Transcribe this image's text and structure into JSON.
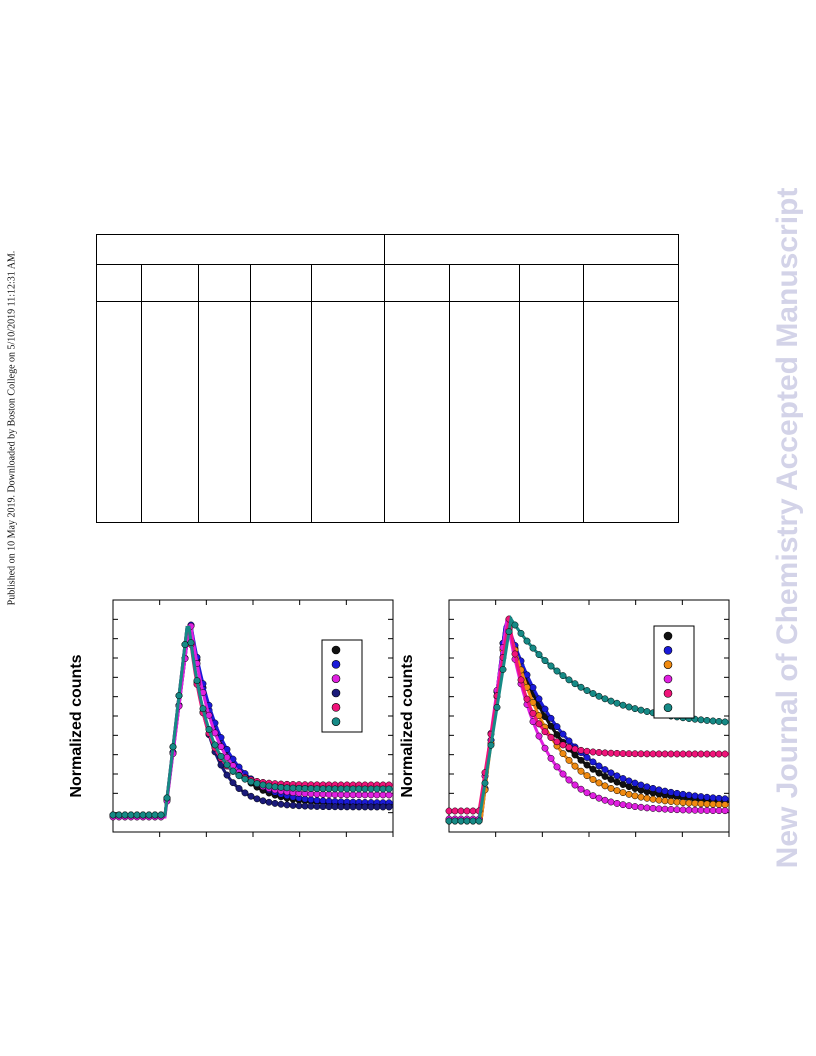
{
  "side_note": "Published on 10 May 2019. Downloaded by Boston College on 5/10/2019 11:12:31 AM.",
  "watermark": "New Journal of Chemistry Accepted Manuscript",
  "colors": {
    "black": "#111111",
    "blue": "#1a1ad8",
    "magenta": "#e020e0",
    "navy": "#1a1a7a",
    "pink": "#f0147a",
    "teal": "#168a86",
    "orange": "#f08a10",
    "watermark": "#d3d3e8"
  },
  "table": {
    "header_groups": 2,
    "columns": 9
  },
  "panel_left": {
    "ylabel": "Normalized counts",
    "legend_icons": [
      "black-ball-icon",
      "blue-ball-icon",
      "magenta-ball-icon",
      "navy-ball-icon",
      "pink-ball-icon",
      "teal-ball-icon"
    ]
  },
  "panel_right": {
    "ylabel": "Normalized counts",
    "legend_icons": [
      "black-ball-icon",
      "blue-ball-icon",
      "orange-ball-icon",
      "magenta-ball-icon",
      "pink-ball-icon",
      "teal-ball-icon"
    ]
  }
}
